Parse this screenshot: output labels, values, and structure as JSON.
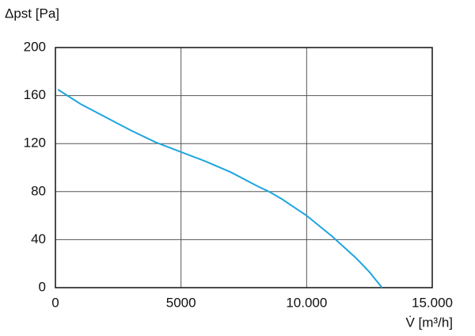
{
  "chart_data": {
    "type": "line",
    "y_label": "Δpst [Pa]",
    "x_label": "V̇ [m³/h]",
    "xlim": [
      0,
      15000
    ],
    "xticks": [
      0,
      5000,
      {
        "value": 10000,
        "label": "10.000"
      },
      {
        "value": 15000,
        "label": "15.000"
      }
    ],
    "ylim": [
      0,
      200
    ],
    "yticks": [
      0,
      40,
      80,
      120,
      160,
      200
    ],
    "grid": true,
    "series": [
      {
        "color": "#1ea5e0",
        "x": [
          100,
          1000,
          2000,
          3000,
          4000,
          5000,
          6000,
          7000,
          8000,
          8500,
          9000,
          10000,
          11000,
          12000,
          12500,
          13000
        ],
        "values": [
          165,
          153,
          142,
          131,
          121,
          113,
          105,
          96,
          85,
          80,
          74,
          60,
          43,
          24,
          13,
          0
        ]
      }
    ]
  }
}
